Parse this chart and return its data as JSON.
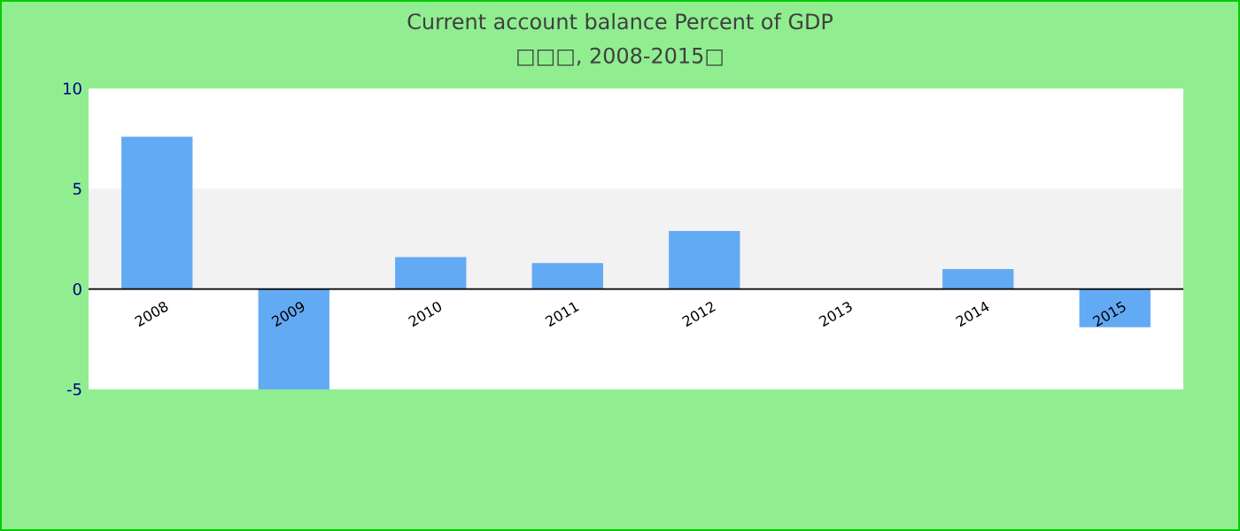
{
  "chart_data": {
    "type": "bar",
    "title": "Current account balance  Percent of GDP",
    "subtitle": "□□□, 2008-2015□",
    "categories": [
      "2008",
      "2009",
      "2010",
      "2011",
      "2012",
      "2013",
      "2014",
      "2015"
    ],
    "values": [
      7.6,
      -5.0,
      1.6,
      1.3,
      2.9,
      null,
      1.0,
      -1.9
    ],
    "color": "#63aaf5",
    "ylim": [
      -5,
      10
    ],
    "yticks": [
      -5,
      0,
      5,
      10
    ],
    "bands": [
      {
        "axis": "y",
        "from": 0,
        "to": 5,
        "color": "#f2f2f2"
      }
    ]
  }
}
